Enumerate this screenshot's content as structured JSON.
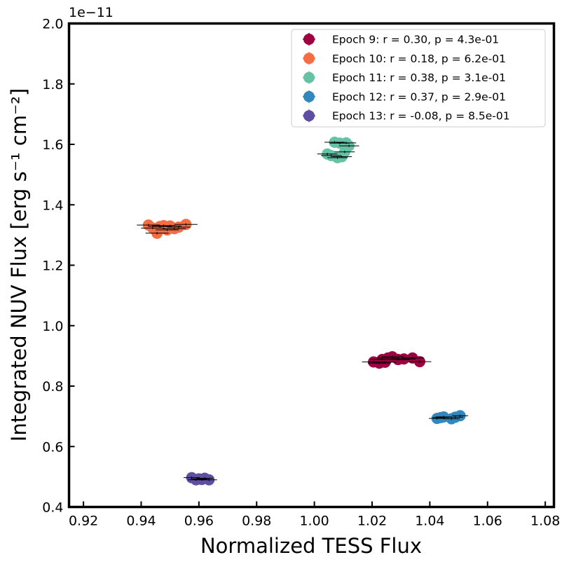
{
  "chart_data": {
    "type": "scatter",
    "title": "",
    "xlabel": "Normalized TESS Flux",
    "ylabel": "Integrated NUV Flux [erg s⁻¹ cm⁻²]",
    "y_offset_label": "1e−11",
    "xlim": [
      0.915,
      1.083
    ],
    "ylim": [
      0.4,
      2.0
    ],
    "x_ticks": [
      0.92,
      0.94,
      0.96,
      0.98,
      1.0,
      1.02,
      1.04,
      1.06,
      1.08
    ],
    "x_tick_labels": [
      "0.92",
      "0.94",
      "0.96",
      "0.98",
      "1.00",
      "1.02",
      "1.04",
      "1.06",
      "1.08"
    ],
    "y_ticks": [
      0.4,
      0.6,
      0.8,
      1.0,
      1.2,
      1.4,
      1.6,
      1.8,
      2.0
    ],
    "y_tick_labels": [
      "0.4",
      "0.6",
      "0.8",
      "1.0",
      "1.2",
      "1.4",
      "1.6",
      "1.8",
      "2.0"
    ],
    "legend_position": "top-right",
    "series": [
      {
        "name": "Epoch 9",
        "label": "Epoch 9: r = 0.30, p = 4.3e-01",
        "color": "#9e0142",
        "x": [
          1.0205,
          1.0225,
          1.0235,
          1.0245,
          1.0255,
          1.027,
          1.029,
          1.031,
          1.034,
          1.0365
        ],
        "y": [
          0.88,
          0.876,
          0.888,
          0.879,
          0.893,
          0.897,
          0.888,
          0.89,
          0.893,
          0.881
        ],
        "xerr": 0.004,
        "yerr": 0.004
      },
      {
        "name": "Epoch 10",
        "label": "Epoch 10: r = 0.18, p = 6.2e-01",
        "color": "#f46d43",
        "x": [
          0.9425,
          0.944,
          0.9455,
          0.9465,
          0.9478,
          0.949,
          0.95,
          0.9515,
          0.953,
          0.9555
        ],
        "y": [
          1.333,
          1.323,
          1.306,
          1.328,
          1.331,
          1.317,
          1.33,
          1.321,
          1.326,
          1.335
        ],
        "xerr": 0.004,
        "yerr": 0.004
      },
      {
        "name": "Epoch 11",
        "label": "Epoch 11: r = 0.38, p = 3.1e-01",
        "color": "#66c2a5",
        "x": [
          1.0045,
          1.0058,
          1.007,
          1.008,
          1.0088,
          1.0095,
          1.0105,
          1.011,
          1.012
        ],
        "y": [
          1.568,
          1.563,
          1.607,
          1.556,
          1.604,
          1.559,
          1.575,
          1.605,
          1.595
        ],
        "xerr": 0.0035,
        "yerr": 0.004
      },
      {
        "name": "Epoch 12",
        "label": "Epoch 12: r = 0.37, p = 2.9e-01",
        "color": "#3288bd",
        "x": [
          1.0425,
          1.0438,
          1.0448,
          1.0475,
          1.0488,
          1.0505
        ],
        "y": [
          0.693,
          0.696,
          0.698,
          0.692,
          0.697,
          0.702
        ],
        "xerr": 0.0028,
        "yerr": 0.004
      },
      {
        "name": "Epoch 13",
        "label": "Epoch 13: r = -0.08, p = 8.5e-01",
        "color": "#5e4fa2",
        "x": [
          0.9575,
          0.959,
          0.96,
          0.961,
          0.962,
          0.9635
        ],
        "y": [
          0.497,
          0.49,
          0.493,
          0.491,
          0.495,
          0.49
        ],
        "xerr": 0.0028,
        "yerr": 0.004
      }
    ]
  }
}
